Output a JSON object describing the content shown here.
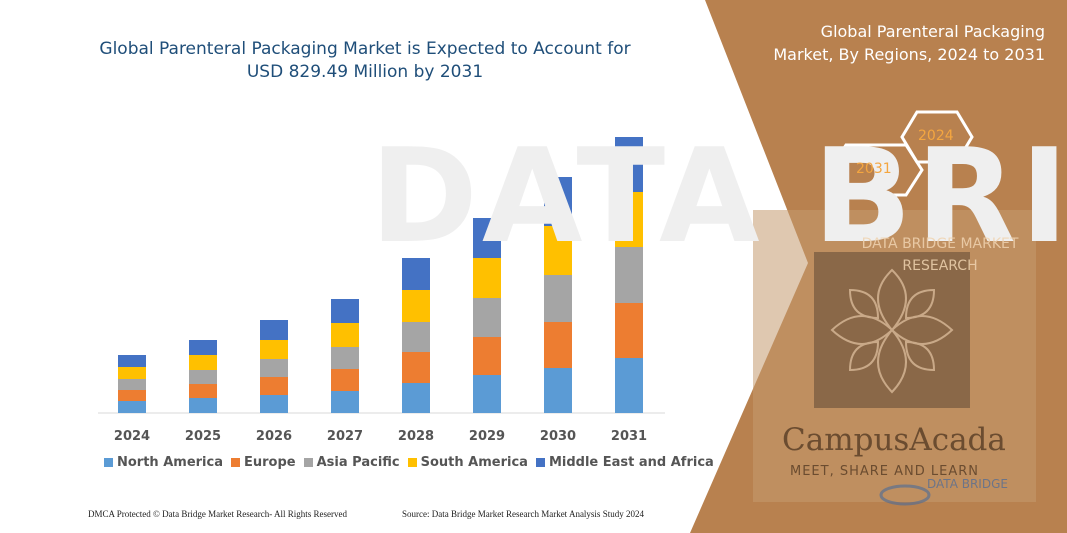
{
  "title": "Global Parenteral Packaging Market is Expected to Account for USD 829.49 Million by 2031",
  "title_line1": "Global Parenteral Packaging Market is Expected to Account for",
  "title_line2": "USD 829.49 Million by 2031",
  "watermark_text": "DATA BRI",
  "right_panel": {
    "title_line1": "Global Parenteral Packaging",
    "title_line2": "Market, By Regions, 2024 to 2031",
    "hex_2024": "2024",
    "hex_2031": "2031",
    "brand_line1": "DATA BRIDGE MARKET",
    "brand_line2": "RESEARCH",
    "campus_name": "CampusAcada",
    "campus_tagline": "MEET, SHARE AND LEARN",
    "small_brand": "DATA BRIDGE"
  },
  "footer": {
    "left": "DMCA Protected © Data Bridge Market Research- All Rights Reserved",
    "right": "Source: Data Bridge Market Research Market Analysis Study 2024"
  },
  "colors": {
    "panel_brown": "#b8814f",
    "panel_inner": "#a77a52",
    "dark_square": "#8a6848"
  },
  "chart_data": {
    "type": "bar",
    "stacked": true,
    "categories": [
      "2024",
      "2025",
      "2026",
      "2027",
      "2028",
      "2029",
      "2030",
      "2031"
    ],
    "series": [
      {
        "name": "North America",
        "color": "#5b9bd5",
        "values": [
          12,
          15,
          18,
          22,
          30,
          38,
          45,
          55
        ]
      },
      {
        "name": "Europe",
        "color": "#ed7d31",
        "values": [
          11,
          14,
          18,
          22,
          31,
          38,
          46,
          55
        ]
      },
      {
        "name": "Asia Pacific",
        "color": "#a5a5a5",
        "values": [
          11,
          14,
          18,
          22,
          30,
          39,
          47,
          56
        ]
      },
      {
        "name": "South America",
        "color": "#ffc000",
        "values": [
          12,
          15,
          19,
          24,
          32,
          40,
          49,
          55
        ]
      },
      {
        "name": "Middle East and Africa",
        "color": "#4472c4",
        "values": [
          12,
          15,
          20,
          24,
          32,
          40,
          49,
          55
        ]
      }
    ],
    "ylim": [
      0,
      290
    ],
    "grid": false,
    "legend_position": "bottom"
  }
}
